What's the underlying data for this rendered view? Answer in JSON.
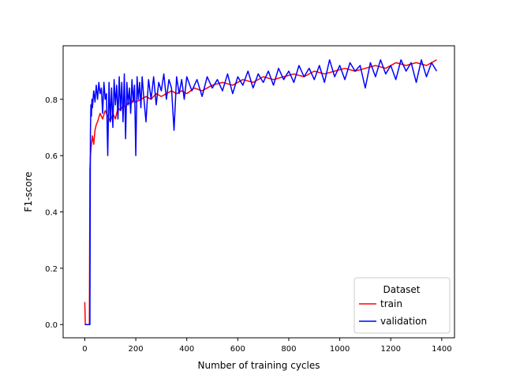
{
  "chart_data": {
    "type": "line",
    "title": "",
    "xlabel": "Number of training cycles",
    "ylabel": "F1-score",
    "xlim": [
      -85,
      1450
    ],
    "ylim": [
      -0.047,
      0.99
    ],
    "xticks": [
      0,
      200,
      400,
      600,
      800,
      1000,
      1200,
      1400
    ],
    "yticks": [
      0.0,
      0.2,
      0.4,
      0.6,
      0.8
    ],
    "xtick_labels": [
      "0",
      "200",
      "400",
      "600",
      "800",
      "1000",
      "1200",
      "1400"
    ],
    "ytick_labels": [
      "0.0",
      "0.2",
      "0.4",
      "0.6",
      "0.8"
    ],
    "grid": false,
    "legend": {
      "title": "Dataset",
      "placement": "lower-right",
      "entries": [
        "train",
        "validation"
      ]
    },
    "series": [
      {
        "name": "train",
        "color": "#ff0000",
        "x": [
          0,
          2,
          5,
          10,
          18,
          20,
          22,
          25,
          30,
          35,
          40,
          45,
          50,
          60,
          70,
          80,
          90,
          100,
          110,
          120,
          130,
          140,
          150,
          160,
          170,
          180,
          190,
          200,
          220,
          240,
          260,
          280,
          300,
          320,
          340,
          360,
          380,
          400,
          430,
          460,
          500,
          540,
          580,
          620,
          660,
          700,
          740,
          780,
          820,
          860,
          900,
          940,
          980,
          1020,
          1060,
          1100,
          1140,
          1180,
          1220,
          1260,
          1300,
          1340,
          1380
        ],
        "y": [
          0.08,
          0.0,
          0.0,
          0.0,
          0.0,
          0.55,
          0.6,
          0.63,
          0.67,
          0.64,
          0.69,
          0.71,
          0.72,
          0.75,
          0.73,
          0.76,
          0.74,
          0.72,
          0.75,
          0.73,
          0.77,
          0.76,
          0.78,
          0.77,
          0.79,
          0.78,
          0.8,
          0.79,
          0.8,
          0.81,
          0.8,
          0.82,
          0.81,
          0.82,
          0.83,
          0.82,
          0.83,
          0.82,
          0.84,
          0.83,
          0.85,
          0.86,
          0.85,
          0.87,
          0.86,
          0.88,
          0.87,
          0.88,
          0.89,
          0.88,
          0.9,
          0.89,
          0.9,
          0.91,
          0.9,
          0.91,
          0.92,
          0.91,
          0.93,
          0.92,
          0.93,
          0.92,
          0.94
        ]
      },
      {
        "name": "validation",
        "color": "#0000ff",
        "x": [
          0,
          5,
          10,
          15,
          20,
          22,
          24,
          26,
          28,
          30,
          35,
          40,
          45,
          50,
          55,
          60,
          65,
          70,
          75,
          80,
          85,
          90,
          95,
          100,
          105,
          110,
          115,
          120,
          125,
          130,
          135,
          140,
          145,
          150,
          155,
          160,
          165,
          170,
          175,
          180,
          185,
          190,
          195,
          200,
          205,
          210,
          215,
          220,
          225,
          230,
          240,
          250,
          260,
          270,
          280,
          290,
          300,
          310,
          320,
          330,
          340,
          350,
          360,
          370,
          380,
          390,
          400,
          420,
          440,
          460,
          480,
          500,
          520,
          540,
          560,
          580,
          600,
          620,
          640,
          660,
          680,
          700,
          720,
          740,
          760,
          780,
          800,
          820,
          840,
          860,
          880,
          900,
          920,
          940,
          960,
          980,
          1000,
          1020,
          1040,
          1060,
          1080,
          1100,
          1120,
          1140,
          1160,
          1180,
          1200,
          1220,
          1240,
          1260,
          1280,
          1300,
          1320,
          1340,
          1360,
          1380
        ],
        "y": [
          0.0,
          0.0,
          0.0,
          0.0,
          0.0,
          0.68,
          0.78,
          0.74,
          0.8,
          0.77,
          0.83,
          0.79,
          0.85,
          0.8,
          0.86,
          0.82,
          0.84,
          0.75,
          0.86,
          0.8,
          0.82,
          0.6,
          0.86,
          0.72,
          0.84,
          0.7,
          0.87,
          0.78,
          0.85,
          0.73,
          0.88,
          0.76,
          0.86,
          0.72,
          0.89,
          0.66,
          0.86,
          0.78,
          0.84,
          0.75,
          0.87,
          0.79,
          0.85,
          0.6,
          0.88,
          0.8,
          0.86,
          0.77,
          0.88,
          0.82,
          0.72,
          0.87,
          0.8,
          0.88,
          0.78,
          0.86,
          0.83,
          0.89,
          0.8,
          0.87,
          0.84,
          0.69,
          0.88,
          0.82,
          0.87,
          0.8,
          0.88,
          0.83,
          0.87,
          0.81,
          0.88,
          0.84,
          0.87,
          0.83,
          0.89,
          0.82,
          0.88,
          0.85,
          0.9,
          0.84,
          0.89,
          0.86,
          0.9,
          0.85,
          0.91,
          0.87,
          0.9,
          0.86,
          0.92,
          0.88,
          0.91,
          0.87,
          0.92,
          0.86,
          0.94,
          0.88,
          0.92,
          0.87,
          0.93,
          0.9,
          0.92,
          0.84,
          0.93,
          0.88,
          0.94,
          0.89,
          0.92,
          0.87,
          0.94,
          0.9,
          0.93,
          0.86,
          0.94,
          0.88,
          0.93,
          0.9
        ]
      }
    ]
  }
}
